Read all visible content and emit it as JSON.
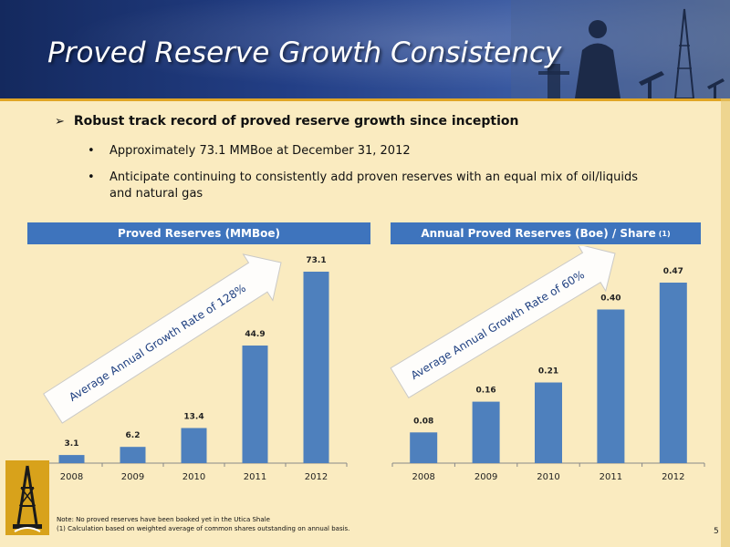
{
  "slide": {
    "title": "Proved Reserve Growth Consistency",
    "page_number": "5",
    "bullets": {
      "main": "Robust track record of proved reserve growth since inception",
      "sub": [
        "Approximately 73.1 MMBoe at December 31, 2012",
        "Anticipate continuing to consistently add proven reserves with an equal mix of oil/liquids and natural gas"
      ]
    },
    "notes": [
      "Note: No proved reserves  have been  booked yet in the Utica Shale",
      "(1)     Calculation based on weighted average  of common shares outstanding on annual basis."
    ]
  },
  "colors": {
    "bar": "#4e80bd",
    "header": "#3e74bd",
    "background": "#faebc0",
    "banner": "#233f86",
    "accent": "#e0a526"
  },
  "chart_data": [
    {
      "type": "bar",
      "title": "Proved Reserves (MMBoe)",
      "categories": [
        "2008",
        "2009",
        "2010",
        "2011",
        "2012"
      ],
      "values": [
        3.1,
        6.2,
        13.4,
        44.9,
        73.1
      ],
      "value_labels": [
        "3.1",
        "6.2",
        "13.4",
        "44.9",
        "73.1"
      ],
      "annotation": "Average Annual Growth Rate of 128%",
      "ylim": [
        0,
        73.1
      ],
      "grid": false,
      "legend": "none"
    },
    {
      "type": "bar",
      "title": "Annual Proved Reserves (Boe) / Share",
      "title_footnote": "(1)",
      "categories": [
        "2008",
        "2009",
        "2010",
        "2011",
        "2012"
      ],
      "values": [
        0.08,
        0.16,
        0.21,
        0.4,
        0.47
      ],
      "value_labels": [
        "0.08",
        "0.16",
        "0.21",
        "0.40",
        "0.47"
      ],
      "annotation": "Average Annual Growth Rate of 60%",
      "ylim": [
        0,
        0.47
      ],
      "grid": false,
      "legend": "none"
    }
  ]
}
